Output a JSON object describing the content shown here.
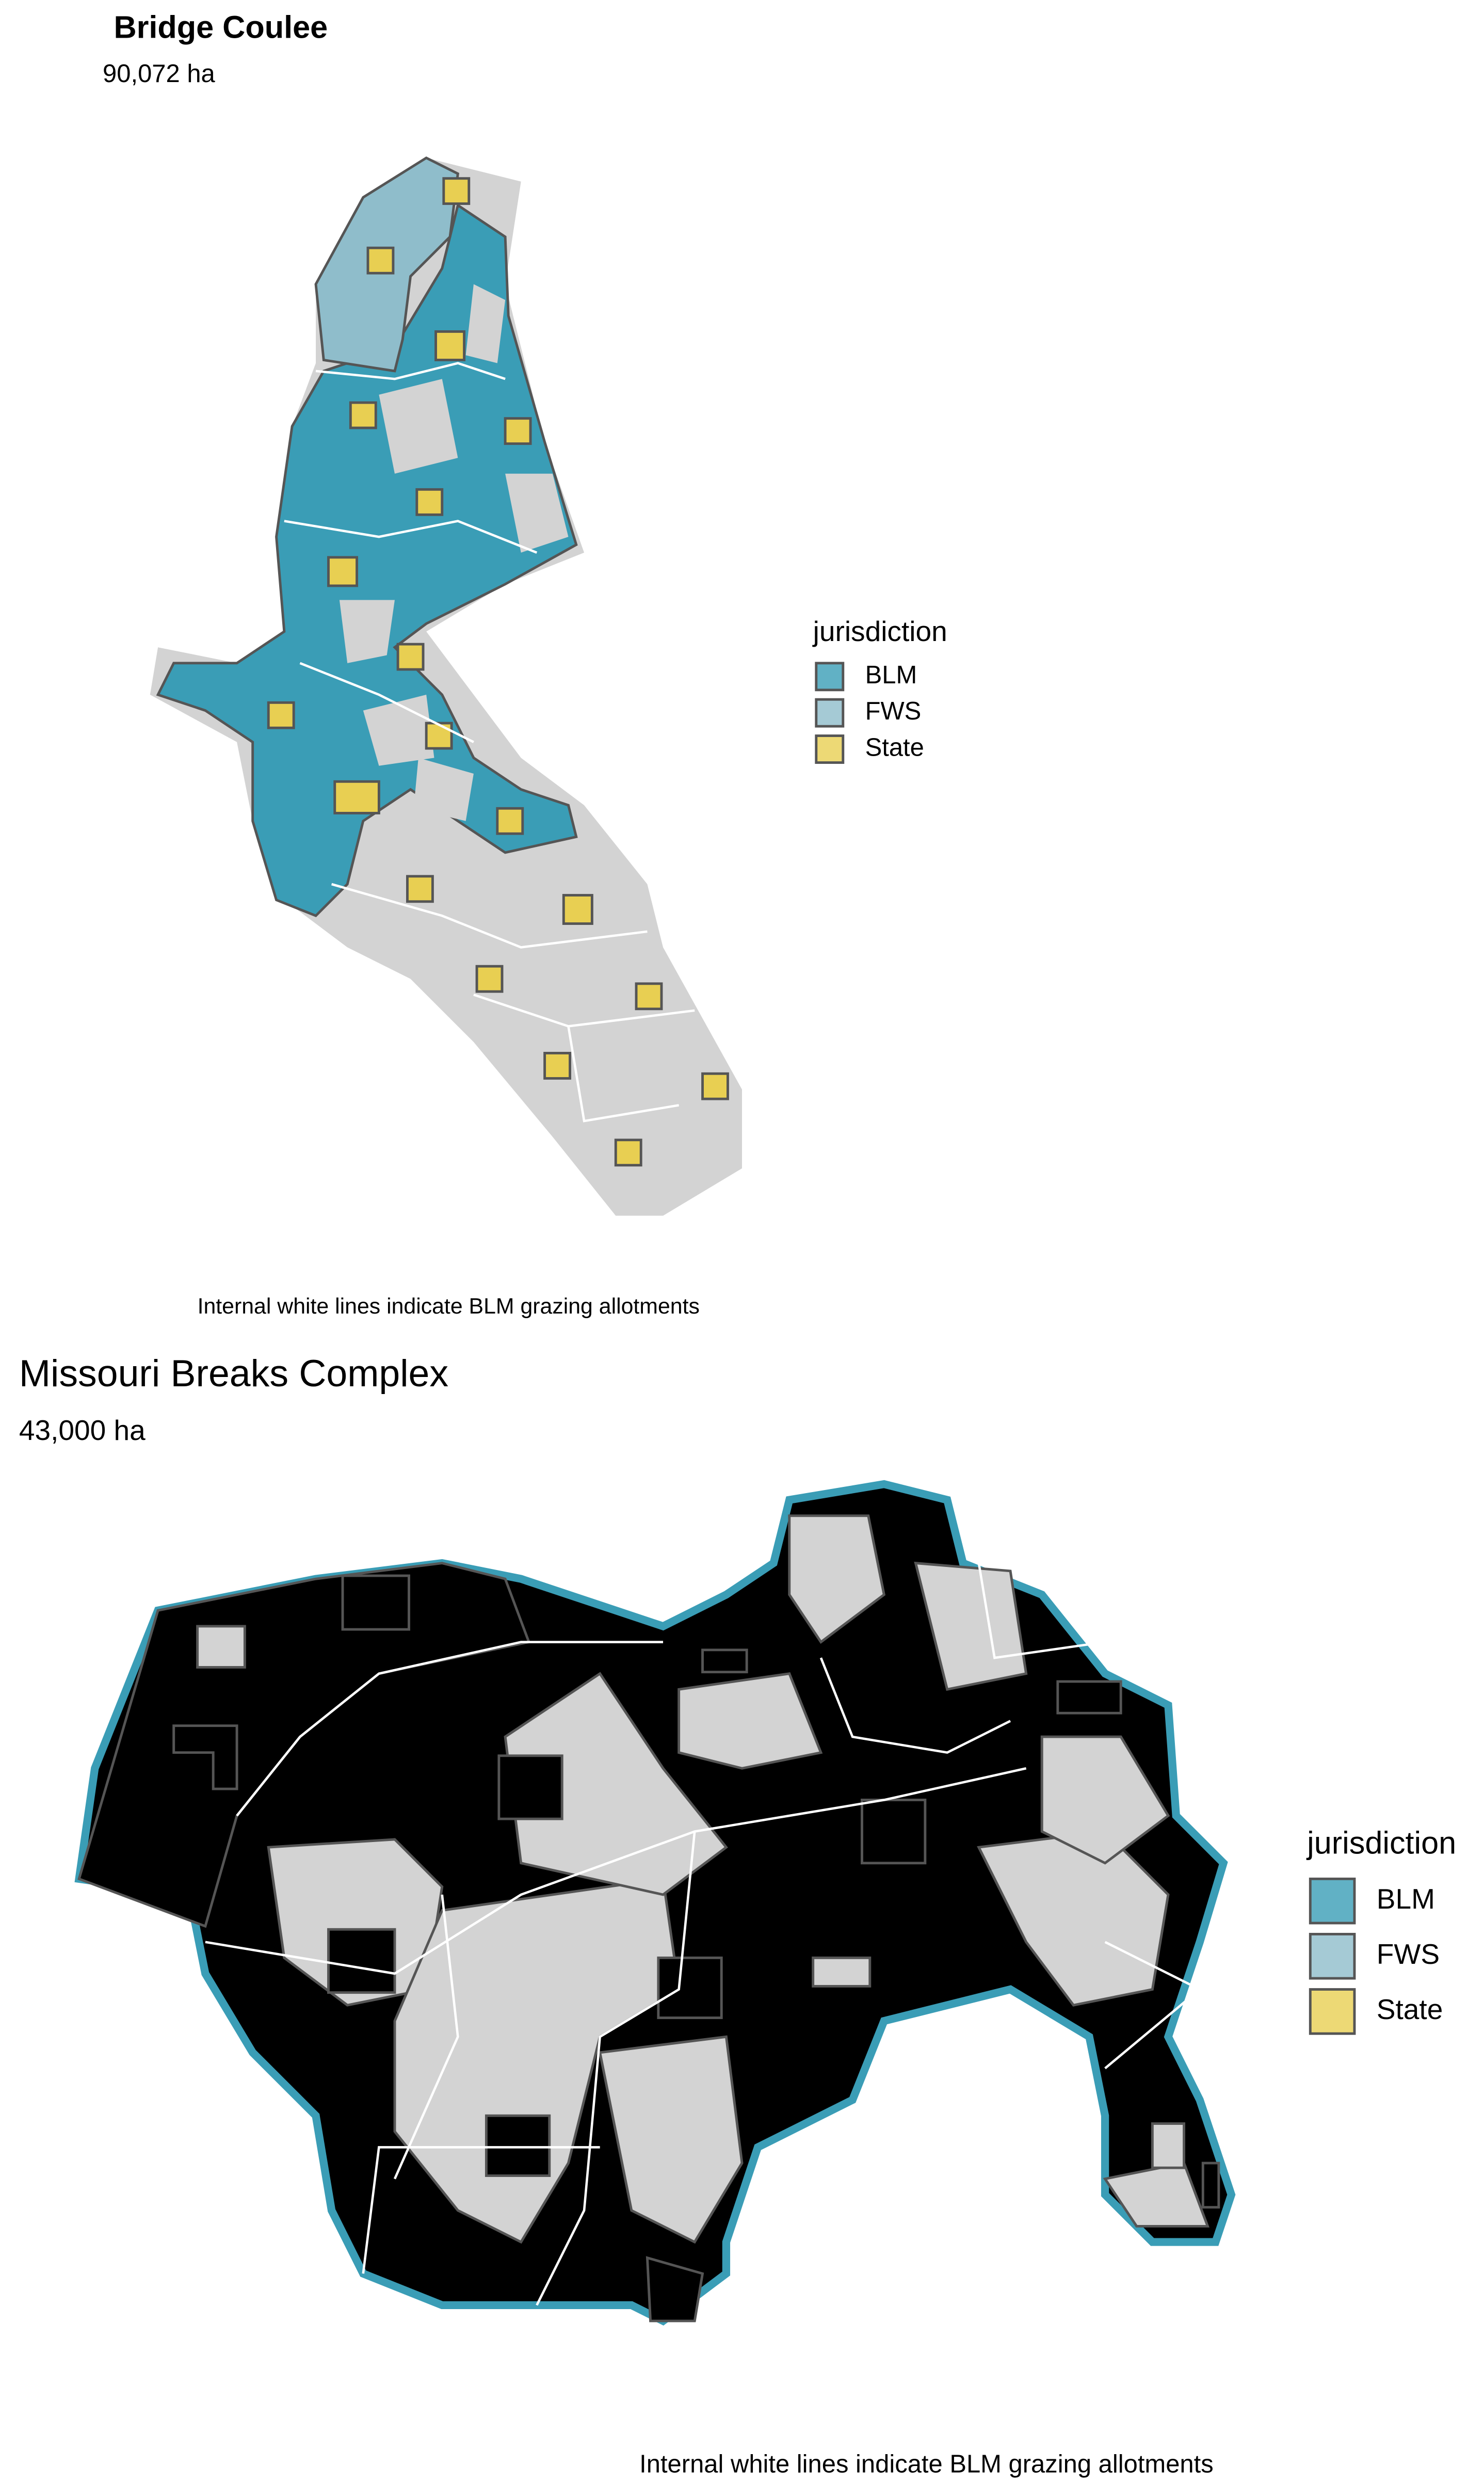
{
  "maps": [
    {
      "title": "Bridge Coulee",
      "area": "90,072 ha",
      "legend": {
        "title": "jurisdiction",
        "items": [
          {
            "label": "BLM",
            "color": "#3a9db6"
          },
          {
            "label": "FWS",
            "color": "#8fbdcb"
          },
          {
            "label": "State",
            "color": "#e8cf52"
          }
        ]
      },
      "caption": "Internal white lines indicate BLM grazing allotments"
    },
    {
      "title": "Missouri Breaks Complex",
      "area": "43,000 ha",
      "legend": {
        "title": "jurisdiction",
        "items": [
          {
            "label": "BLM",
            "color": "#3a9db6"
          },
          {
            "label": "FWS",
            "color": "#8fbdcb"
          },
          {
            "label": "State",
            "color": "#e8cf52"
          }
        ]
      },
      "caption": "Internal white lines indicate BLM grazing allotments"
    }
  ]
}
